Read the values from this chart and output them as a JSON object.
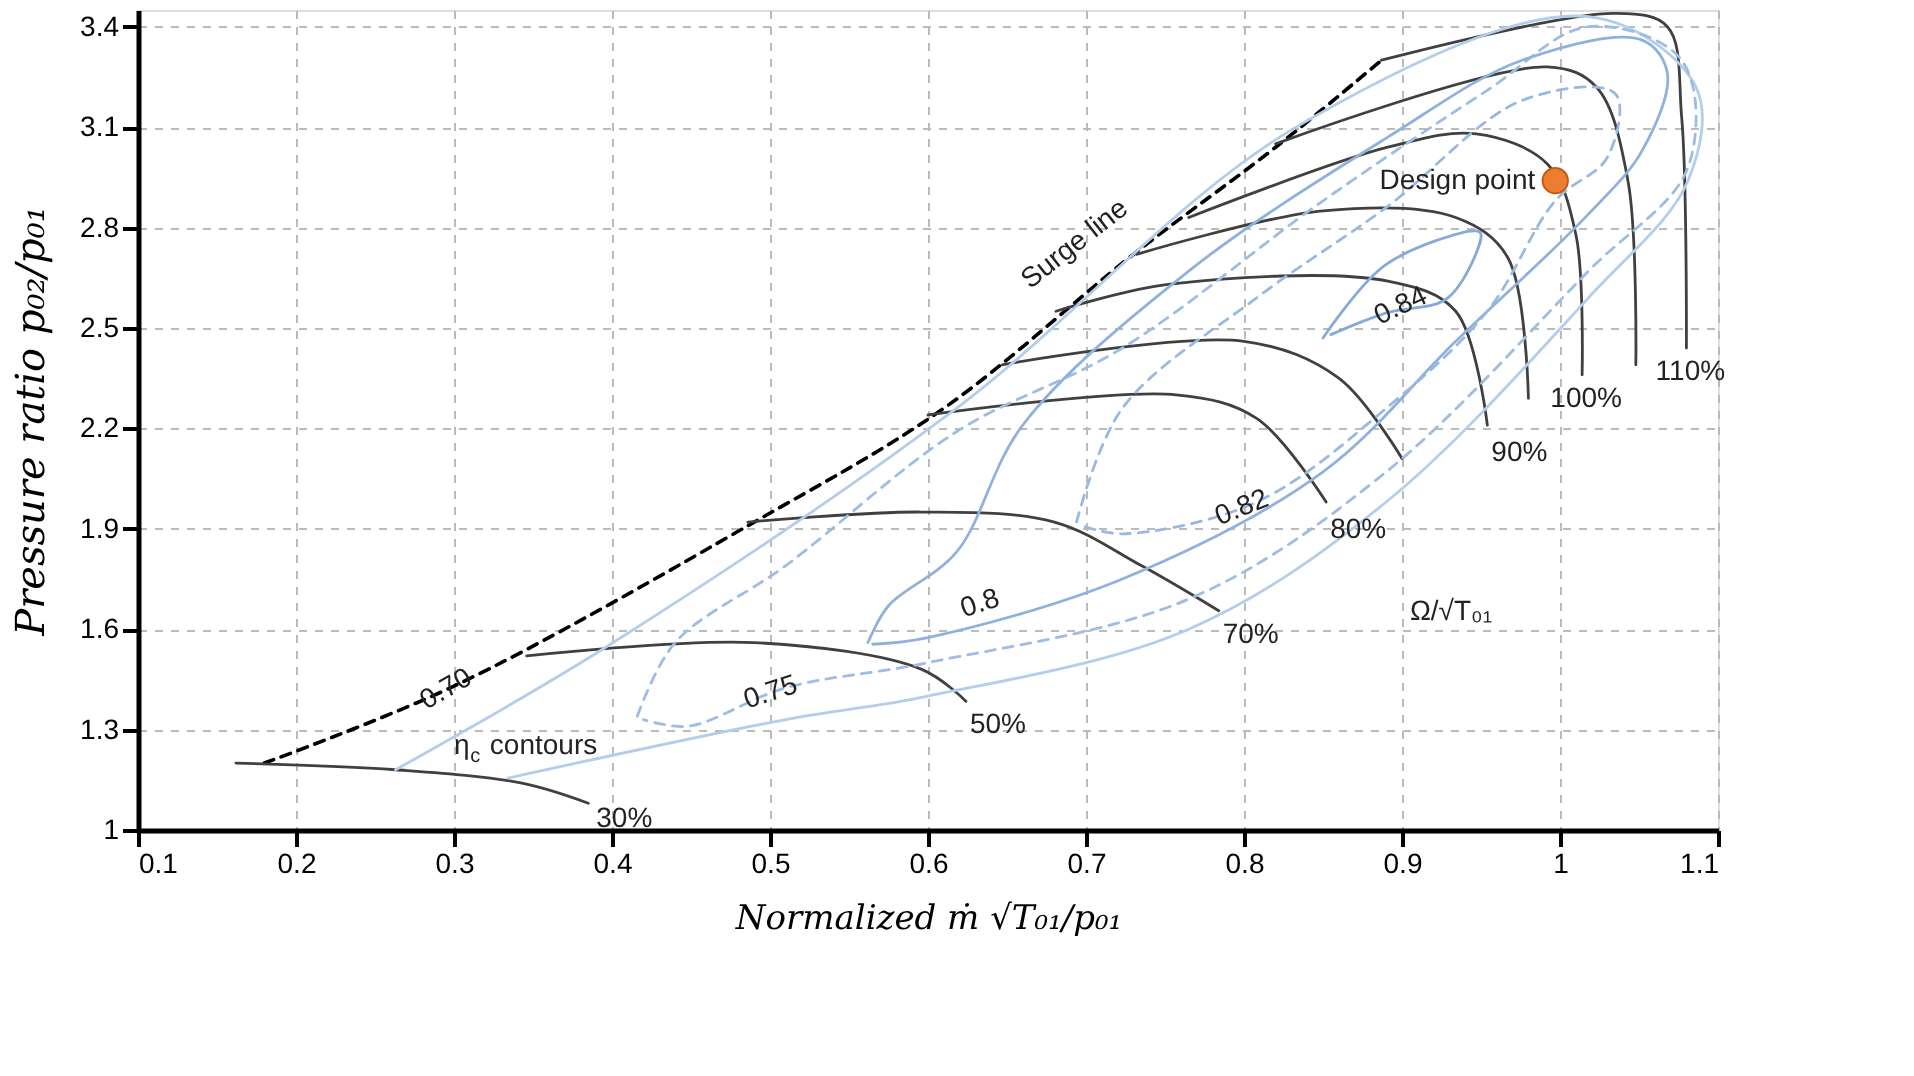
{
  "chart_data": {
    "type": "line",
    "xlabel": "Normalized ṁ √T₀₁/p₀₁",
    "ylabel": "Pressure ratio p₀₂/p₀₁",
    "xlim": [
      0.1,
      1.1
    ],
    "ylim": [
      1,
      3.45
    ],
    "xticks": [
      0.1,
      0.2,
      0.3,
      0.4,
      0.5,
      0.6,
      0.7,
      0.8,
      0.9,
      1,
      1.1
    ],
    "yticks": [
      1,
      1.3,
      1.6,
      1.9,
      2.2,
      2.5,
      2.8,
      3.1,
      3.4
    ],
    "grid": true,
    "marker": "none",
    "series": [
      {
        "color": "#000000",
        "line_style": "dashed",
        "x": [
          0.18,
          0.3,
          0.49,
          0.61,
          0.73,
          0.82,
          0.887
        ],
        "values": [
          1.2,
          1.43,
          1.92,
          2.26,
          2.72,
          3.04,
          3.3
        ]
      },
      {
        "color": "#404040",
        "x": [
          0.162,
          0.263,
          0.343,
          0.385
        ],
        "values": [
          1.2,
          1.18,
          1.14,
          1.08
        ]
      },
      {
        "color": "#404040",
        "x": [
          0.346,
          0.49,
          0.596,
          0.624
        ],
        "values": [
          1.52,
          1.56,
          1.48,
          1.385
        ]
      },
      {
        "color": "#404040",
        "x": [
          0.486,
          0.596,
          0.68,
          0.735,
          0.784
        ],
        "values": [
          1.92,
          1.95,
          1.92,
          1.79,
          1.655
        ]
      },
      {
        "color": "#404040",
        "x": [
          0.6,
          0.757,
          0.808,
          0.852
        ],
        "values": [
          2.24,
          2.3,
          2.23,
          1.98
        ]
      },
      {
        "color": "#404040",
        "x": [
          0.647,
          0.8,
          0.86,
          0.9
        ],
        "values": [
          2.39,
          2.46,
          2.35,
          2.11
        ]
      },
      {
        "color": "#404040",
        "x": [
          0.681,
          0.752,
          0.891,
          0.934,
          0.954
        ],
        "values": [
          2.55,
          2.63,
          2.64,
          2.55,
          2.21
        ]
      },
      {
        "color": "#404040",
        "x": [
          0.732,
          0.85,
          0.934,
          0.967,
          0.98
        ],
        "values": [
          2.72,
          2.85,
          2.83,
          2.71,
          2.29
        ]
      },
      {
        "color": "#404040",
        "x": [
          0.765,
          0.891,
          0.947,
          0.992,
          1.01,
          1.014
        ],
        "values": [
          2.83,
          3.04,
          3.08,
          2.99,
          2.78,
          2.36
        ]
      },
      {
        "color": "#404040",
        "x": [
          0.82,
          0.992,
          1.023,
          1.043,
          1.048
        ],
        "values": [
          3.05,
          3.28,
          3.22,
          2.94,
          2.39
        ]
      },
      {
        "color": "#404040",
        "x": [
          0.887,
          1.035,
          1.068,
          1.077,
          1.08
        ],
        "values": [
          3.3,
          3.44,
          3.4,
          3.13,
          2.44
        ]
      },
      {
        "color": "#b4cdea",
        "x": [
          0.263,
          0.394,
          0.618,
          0.833,
          1.018,
          1.086,
          1.081,
          1.018,
          0.89,
          0.765,
          0.6,
          0.51,
          0.334
        ],
        "values": [
          1.18,
          1.54,
          2.26,
          3.1,
          3.43,
          3.22,
          2.94,
          2.59,
          1.98,
          1.6,
          1.4,
          1.33,
          1.155
        ]
      },
      {
        "color": "#9dbde3",
        "line_style": "dashed",
        "x": [
          0.416,
          0.44,
          0.51,
          0.618,
          0.723,
          0.85,
          0.954,
          1.018,
          1.077,
          1.081,
          1.018,
          0.89,
          0.765,
          0.6,
          0.51,
          0.448,
          0.42
        ],
        "values": [
          1.34,
          1.56,
          1.79,
          2.19,
          2.44,
          2.88,
          3.21,
          3.4,
          3.3,
          2.98,
          2.67,
          2.07,
          1.69,
          1.5,
          1.425,
          1.31,
          1.33
        ]
      },
      {
        "color": "#8fb2dc",
        "x": [
          0.562,
          0.575,
          0.618,
          0.66,
          0.765,
          0.891,
          0.976,
          1.052,
          1.068,
          1.052,
          1.018,
          0.934,
          0.85,
          0.723,
          0.6,
          0.565
        ],
        "values": [
          1.56,
          1.67,
          1.83,
          2.21,
          2.67,
          3.07,
          3.3,
          3.36,
          3.26,
          3.03,
          2.84,
          2.46,
          2.07,
          1.75,
          1.575,
          1.555
        ]
      },
      {
        "color": "#98b9e1",
        "line_style": "dashed",
        "x": [
          0.694,
          0.723,
          0.808,
          0.89,
          0.976,
          1.035,
          1.03,
          0.997,
          0.954,
          0.89,
          0.808,
          0.723,
          0.697
        ],
        "values": [
          1.92,
          2.26,
          2.59,
          2.86,
          3.18,
          3.2,
          3.01,
          2.88,
          2.55,
          2.26,
          1.98,
          1.885,
          1.91
        ]
      },
      {
        "color": "#86abd8",
        "x": [
          0.85,
          0.89,
          0.947,
          0.95,
          0.929,
          0.89,
          0.855
        ],
        "values": [
          2.47,
          2.69,
          2.79,
          2.78,
          2.59,
          2.545,
          2.48
        ]
      },
      {
        "type": "scatter",
        "marker": "circle",
        "color": "#ed7d31",
        "x": [
          0.997
        ],
        "values": [
          2.94
        ]
      }
    ],
    "annotations": [
      {
        "text": "Surge line",
        "x": 0.73,
        "y": 2.72
      },
      {
        "text": "Design point",
        "x": 0.997,
        "y": 2.94
      },
      {
        "text": "30%",
        "x": 0.385,
        "y": 1.08
      },
      {
        "text": "50%",
        "x": 0.624,
        "y": 1.385
      },
      {
        "text": "70%",
        "x": 0.784,
        "y": 1.655
      },
      {
        "text": "80%",
        "x": 0.852,
        "y": 1.98
      },
      {
        "text": "90%",
        "x": 0.954,
        "y": 2.21
      },
      {
        "text": "100%",
        "x": 1.014,
        "y": 2.36
      },
      {
        "text": "110%",
        "x": 1.08,
        "y": 2.44
      },
      "0.70",
      {
        "text": "0.75",
        "x": 0.51,
        "y": 1.425
      },
      {
        "text": "0.8",
        "x": 0.6,
        "y": 1.575
      },
      {
        "text": "0.82",
        "x": 0.808,
        "y": 1.98
      },
      {
        "text": "0.84",
        "x": 0.89,
        "y": 2.545
      },
      "η$_{c}$ contours",
      "Ω/√T₀₁"
    ]
  }
}
